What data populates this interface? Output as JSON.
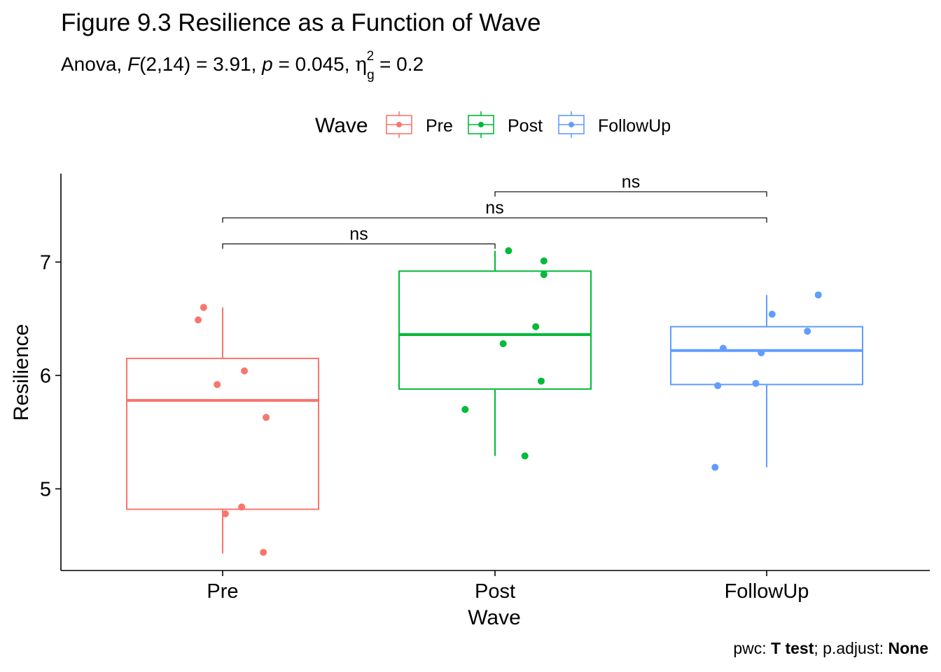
{
  "figure": {
    "title": "Figure 9.3 Resilience as a Function of Wave",
    "subtitle": {
      "prefix": "Anova, ",
      "f_symbol": "F",
      "f_df": "(2,14) = 3.91, ",
      "p_symbol": "p",
      "p_value": " = 0.045, ",
      "eta_symbol": "η",
      "eta_sub": "g",
      "eta_sup": "2",
      "eta_value": " = 0.2"
    },
    "caption": {
      "pwc_label": "pwc: ",
      "pwc_value": "T test",
      "sep": "; p.adjust: ",
      "adjust_value": "None"
    }
  },
  "chart_data": {
    "type": "boxplot",
    "xlabel": "Wave",
    "ylabel": "Resilience",
    "categories": [
      "Pre",
      "Post",
      "FollowUp"
    ],
    "ylim": [
      4.28,
      7.78
    ],
    "yticks": [
      5,
      6,
      7
    ],
    "grid": false,
    "legend": {
      "title": "Wave",
      "position": "top",
      "entries": [
        "Pre",
        "Post",
        "FollowUp"
      ]
    },
    "colors": {
      "Pre": "#F8766D",
      "Post": "#00BA38",
      "FollowUp": "#619CFF"
    },
    "series": [
      {
        "name": "Pre",
        "box": {
          "min": 4.43,
          "q1": 4.82,
          "median": 5.78,
          "q3": 6.15,
          "max": 6.6
        },
        "points": [
          {
            "jitter": -0.07,
            "y": 6.6
          },
          {
            "jitter": -0.09,
            "y": 6.49
          },
          {
            "jitter": 0.08,
            "y": 6.04
          },
          {
            "jitter": -0.02,
            "y": 5.92
          },
          {
            "jitter": 0.16,
            "y": 5.63
          },
          {
            "jitter": 0.07,
            "y": 4.84
          },
          {
            "jitter": 0.01,
            "y": 4.78
          },
          {
            "jitter": 0.15,
            "y": 4.44
          }
        ]
      },
      {
        "name": "Post",
        "box": {
          "min": 5.29,
          "q1": 5.88,
          "median": 6.36,
          "q3": 6.92,
          "max": 7.1
        },
        "points": [
          {
            "jitter": 0.05,
            "y": 7.1
          },
          {
            "jitter": 0.18,
            "y": 7.01
          },
          {
            "jitter": 0.18,
            "y": 6.89
          },
          {
            "jitter": 0.15,
            "y": 6.43
          },
          {
            "jitter": 0.03,
            "y": 6.28
          },
          {
            "jitter": 0.17,
            "y": 5.95
          },
          {
            "jitter": -0.11,
            "y": 5.7
          },
          {
            "jitter": 0.11,
            "y": 5.29
          }
        ]
      },
      {
        "name": "FollowUp",
        "box": {
          "min": 5.19,
          "q1": 5.92,
          "median": 6.22,
          "q3": 6.43,
          "max": 6.71
        },
        "points": [
          {
            "jitter": 0.19,
            "y": 6.71
          },
          {
            "jitter": 0.02,
            "y": 6.54
          },
          {
            "jitter": 0.15,
            "y": 6.39
          },
          {
            "jitter": -0.16,
            "y": 6.24
          },
          {
            "jitter": -0.02,
            "y": 6.2
          },
          {
            "jitter": -0.04,
            "y": 5.93
          },
          {
            "jitter": -0.18,
            "y": 5.91
          },
          {
            "jitter": -0.19,
            "y": 5.19
          }
        ]
      }
    ],
    "brackets": [
      {
        "from": "Pre",
        "to": "Post",
        "y": 7.16,
        "label": "ns"
      },
      {
        "from": "Pre",
        "to": "FollowUp",
        "y": 7.39,
        "label": "ns"
      },
      {
        "from": "Post",
        "to": "FollowUp",
        "y": 7.62,
        "label": "ns"
      }
    ]
  }
}
